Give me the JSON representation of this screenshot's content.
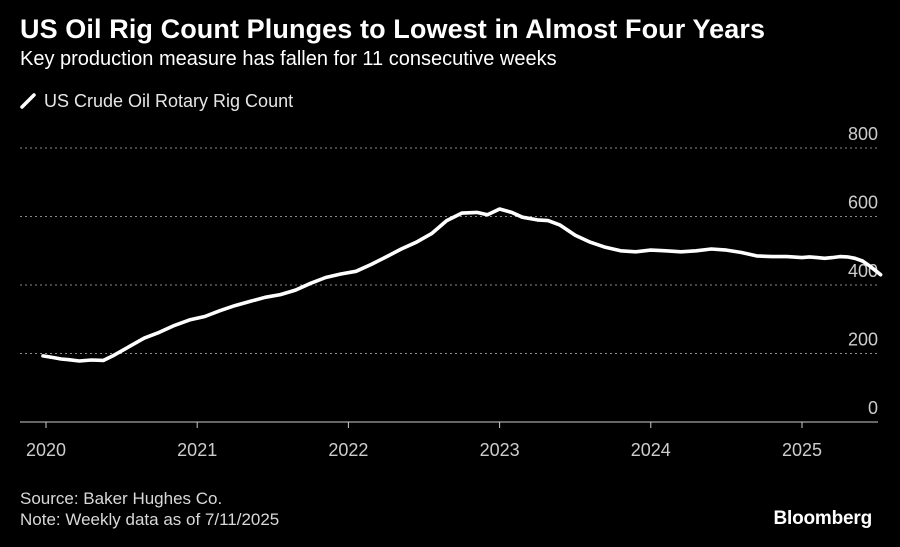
{
  "header": {
    "title": "US Oil Rig Count Plunges to Lowest in Almost Four Years",
    "subtitle": "Key production measure has fallen for 11 consecutive weeks"
  },
  "legend": {
    "label": "US Crude Oil Rotary Rig Count"
  },
  "footer": {
    "source": "Source: Baker Hughes Co.",
    "note": "Note: Weekly data as of 7/11/2025",
    "brand": "Bloomberg"
  },
  "colors": {
    "background": "#000000",
    "line": "#ffffff",
    "grid": "#8a8a8a",
    "axis": "#cccccc"
  },
  "chart_data": {
    "type": "line",
    "series": [
      {
        "name": "US Crude Oil Rotary Rig Count",
        "x": [
          2019.98,
          2020.05,
          2020.1,
          2020.15,
          2020.22,
          2020.3,
          2020.38,
          2020.45,
          2020.55,
          2020.65,
          2020.75,
          2020.85,
          2020.95,
          2021.05,
          2021.15,
          2021.25,
          2021.35,
          2021.45,
          2021.55,
          2021.65,
          2021.75,
          2021.85,
          2021.95,
          2022.05,
          2022.15,
          2022.25,
          2022.35,
          2022.45,
          2022.55,
          2022.65,
          2022.75,
          2022.85,
          2022.92,
          2023.0,
          2023.08,
          2023.15,
          2023.25,
          2023.32,
          2023.4,
          2023.5,
          2023.6,
          2023.7,
          2023.8,
          2023.9,
          2024.0,
          2024.1,
          2024.2,
          2024.3,
          2024.4,
          2024.5,
          2024.6,
          2024.7,
          2024.8,
          2024.9,
          2025.0,
          2025.05,
          2025.1,
          2025.15,
          2025.2,
          2025.25,
          2025.3,
          2025.35,
          2025.4,
          2025.45,
          2025.52
        ],
        "values": [
          193,
          188,
          184,
          182,
          178,
          181,
          180,
          195,
          220,
          245,
          262,
          282,
          298,
          308,
          325,
          340,
          352,
          364,
          372,
          385,
          405,
          422,
          432,
          440,
          460,
          482,
          505,
          525,
          550,
          588,
          610,
          612,
          605,
          622,
          612,
          598,
          590,
          588,
          575,
          545,
          525,
          510,
          500,
          497,
          502,
          500,
          497,
          500,
          505,
          502,
          495,
          485,
          483,
          483,
          480,
          482,
          480,
          478,
          480,
          483,
          482,
          478,
          470,
          455,
          430
        ]
      }
    ],
    "xlabel": "",
    "ylabel": "",
    "xlim": [
      2020.0,
      2025.72
    ],
    "ylim": [
      0,
      800
    ],
    "xticks": [
      "2020",
      "2021",
      "2022",
      "2023",
      "2024",
      "2025"
    ],
    "yticks": [
      0,
      200,
      400,
      600,
      800
    ],
    "grid": true,
    "legend_position": "top-left"
  }
}
